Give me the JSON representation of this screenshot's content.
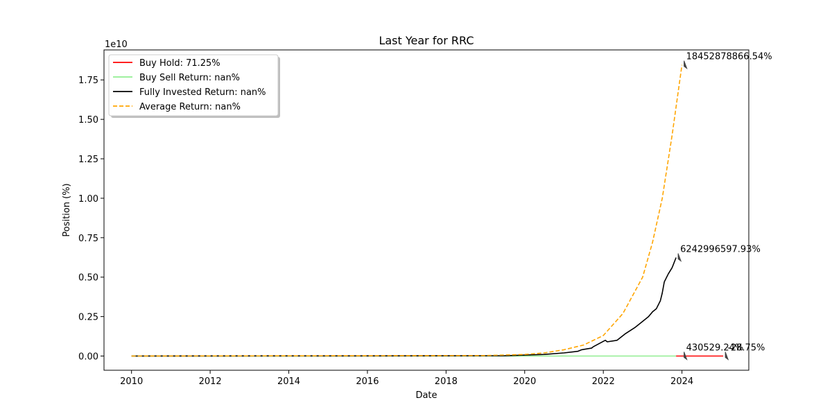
{
  "chart_data": {
    "type": "line",
    "title": "Last Year for RRC",
    "xlabel": "Date",
    "ylabel": "Position (%)",
    "y_scale_label": "1e10",
    "xlim": [
      2009.3,
      2025.7
    ],
    "ylim": [
      -0.09,
      1.94
    ],
    "x_ticks": [
      2010,
      2012,
      2014,
      2016,
      2018,
      2020,
      2022,
      2024
    ],
    "x_tick_labels": [
      "2010",
      "2012",
      "2014",
      "2016",
      "2018",
      "2020",
      "2022",
      "2024"
    ],
    "y_ticks": [
      0.0,
      0.25,
      0.5,
      0.75,
      1.0,
      1.25,
      1.5,
      1.75
    ],
    "y_tick_labels": [
      "0.00",
      "0.25",
      "0.50",
      "0.75",
      "1.00",
      "1.25",
      "1.50",
      "1.75"
    ],
    "legend_position": "top-left",
    "series": [
      {
        "name": "Buy Hold: 71.25%",
        "color": "#ff0000",
        "style": "solid",
        "x": [
          2023.85,
          2024.2,
          2024.6,
          2025.05
        ],
        "y": [
          0.0,
          0.0,
          0.0,
          0.0
        ]
      },
      {
        "name": "Buy Sell Return: nan%",
        "color": "#90ee90",
        "style": "solid",
        "x": [
          2010.0,
          2012.0,
          2014.0,
          2016.0,
          2018.0,
          2020.0,
          2022.0,
          2023.85
        ],
        "y": [
          0.0,
          0.0,
          0.0,
          0.0,
          0.0,
          0.0,
          0.0,
          0.0
        ]
      },
      {
        "name": "Fully Invested Return: nan%",
        "color": "#000000",
        "style": "solid",
        "x": [
          2010.0,
          2019.5,
          2020.5,
          2021.0,
          2021.35,
          2021.45,
          2021.7,
          2021.75,
          2022.05,
          2022.1,
          2022.35,
          2022.55,
          2022.8,
          2022.95,
          2023.05,
          2023.15,
          2023.25,
          2023.35,
          2023.45,
          2023.5,
          2023.55,
          2023.65,
          2023.75,
          2023.85
        ],
        "y": [
          0.0,
          0.002,
          0.01,
          0.02,
          0.03,
          0.04,
          0.05,
          0.06,
          0.1,
          0.09,
          0.1,
          0.14,
          0.18,
          0.21,
          0.23,
          0.25,
          0.28,
          0.3,
          0.35,
          0.4,
          0.47,
          0.52,
          0.56,
          0.624
        ]
      },
      {
        "name": "Average Return: nan%",
        "color": "#ffa500",
        "style": "dashed",
        "x": [
          2010.0,
          2019.0,
          2020.0,
          2020.5,
          2021.0,
          2021.5,
          2022.0,
          2022.5,
          2023.0,
          2023.25,
          2023.5,
          2023.75,
          2024.0
        ],
        "y": [
          0.0,
          0.003,
          0.01,
          0.02,
          0.04,
          0.07,
          0.13,
          0.27,
          0.5,
          0.72,
          1.0,
          1.4,
          1.845
        ]
      }
    ],
    "annotations": [
      {
        "text": "18452878866.54%",
        "x": 2024.0,
        "y": 1.845,
        "color": "#ffa500"
      },
      {
        "text": "6242996597.93%",
        "x": 2023.85,
        "y": 0.624,
        "color": "#000000"
      },
      {
        "text": "430529.24%",
        "x": 2024.0,
        "y": 0.0,
        "color": "#90ee90"
      },
      {
        "text": "-28.75%",
        "x": 2025.05,
        "y": 0.0,
        "color": "#ff0000"
      }
    ]
  }
}
